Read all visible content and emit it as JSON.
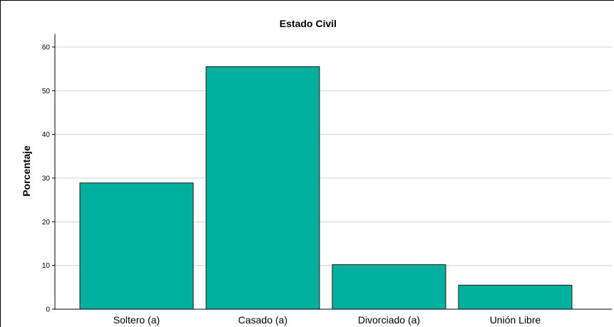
{
  "chart_data": {
    "type": "bar",
    "title": "Estado Civil",
    "xlabel": "",
    "ylabel": "Porcentaje",
    "categories": [
      "Soltero (a)",
      "Casado (a)",
      "Divorciado (a)",
      "Unión Libre"
    ],
    "values": [
      28.9,
      55.5,
      10.2,
      5.5
    ],
    "ylim": [
      0,
      63
    ],
    "yticks": [
      0,
      10,
      20,
      30,
      40,
      50,
      60
    ],
    "grid": true,
    "legend": "none",
    "colors": {
      "bar_fill": "#00B09E",
      "bar_stroke": "#1A1A1A",
      "grid": "#D3D3D3",
      "axis": "#000000"
    }
  }
}
